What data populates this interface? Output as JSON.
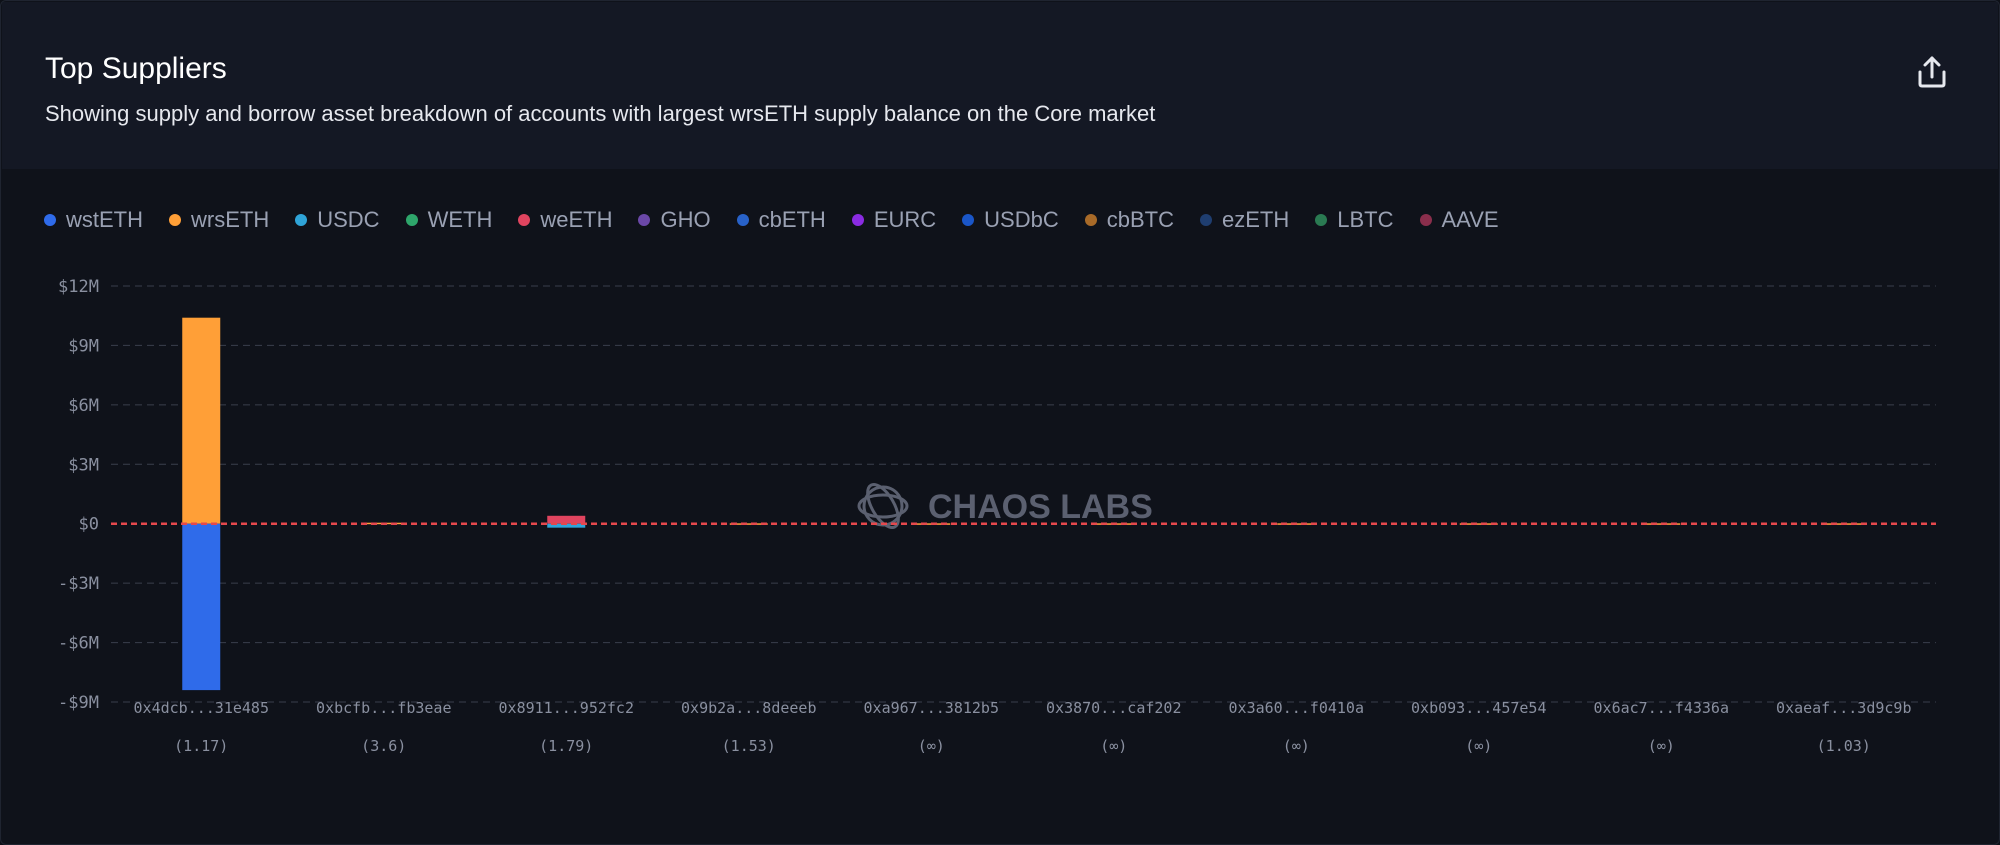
{
  "header": {
    "title": "Top Suppliers",
    "subtitle": "Showing supply and borrow asset breakdown of accounts with largest wrsETH supply balance on the Core market"
  },
  "watermark": "CHAOS LABS",
  "icons": {
    "export": "share-upload-icon",
    "watermark_logo": "chaos-labs-logo-icon"
  },
  "legend": [
    {
      "name": "wstETH",
      "color": "#2f6bea"
    },
    {
      "name": "wrsETH",
      "color": "#ff9f37"
    },
    {
      "name": "USDC",
      "color": "#2fa4d8"
    },
    {
      "name": "WETH",
      "color": "#2ea66b"
    },
    {
      "name": "weETH",
      "color": "#e0445f"
    },
    {
      "name": "GHO",
      "color": "#6b48a8"
    },
    {
      "name": "cbETH",
      "color": "#2862c9"
    },
    {
      "name": "EURC",
      "color": "#8a2be2"
    },
    {
      "name": "USDbC",
      "color": "#1a56c8"
    },
    {
      "name": "cbBTC",
      "color": "#a86a28"
    },
    {
      "name": "ezETH",
      "color": "#1f3e70"
    },
    {
      "name": "LBTC",
      "color": "#2a7a52"
    },
    {
      "name": "AAVE",
      "color": "#8a2e4c"
    }
  ],
  "chart_data": {
    "type": "bar",
    "stacked": true,
    "ylim": [
      -9000000,
      12000000
    ],
    "y_ticks": [
      {
        "value": 12000000,
        "label": "$12M"
      },
      {
        "value": 9000000,
        "label": "$9M"
      },
      {
        "value": 6000000,
        "label": "$6M"
      },
      {
        "value": 3000000,
        "label": "$3M"
      },
      {
        "value": 0,
        "label": "$0"
      },
      {
        "value": -3000000,
        "label": "-$3M"
      },
      {
        "value": -6000000,
        "label": "-$6M"
      },
      {
        "value": -9000000,
        "label": "-$9M"
      }
    ],
    "grid": true,
    "legend_position": "top-left",
    "categories": [
      {
        "label": "0x4dcb...31e485",
        "sublabel": "(1.17)"
      },
      {
        "label": "0xbcfb...fb3eae",
        "sublabel": "(3.6)"
      },
      {
        "label": "0x8911...952fc2",
        "sublabel": "(1.79)"
      },
      {
        "label": "0x9b2a...8deeeb",
        "sublabel": "(1.53)"
      },
      {
        "label": "0xa967...3812b5",
        "sublabel": "(∞)"
      },
      {
        "label": "0x3870...caf202",
        "sublabel": "(∞)"
      },
      {
        "label": "0x3a60...f0410a",
        "sublabel": "(∞)"
      },
      {
        "label": "0xb093...457e54",
        "sublabel": "(∞)"
      },
      {
        "label": "0x6ac7...f4336a",
        "sublabel": "(∞)"
      },
      {
        "label": "0xaeaf...3d9c9b",
        "sublabel": "(1.03)"
      }
    ],
    "series": [
      {
        "name": "wrsETH",
        "color": "#ff9f37",
        "values": [
          10400000,
          50000,
          0,
          20000,
          20000,
          20000,
          20000,
          20000,
          20000,
          20000
        ]
      },
      {
        "name": "wstETH",
        "color": "#2f6bea",
        "values": [
          -8400000,
          0,
          0,
          0,
          0,
          0,
          0,
          0,
          0,
          0
        ]
      },
      {
        "name": "weETH",
        "color": "#e0445f",
        "values": [
          0,
          0,
          400000,
          0,
          0,
          0,
          0,
          0,
          0,
          0
        ]
      },
      {
        "name": "USDC",
        "color": "#2fa4d8",
        "values": [
          0,
          0,
          -200000,
          0,
          0,
          0,
          0,
          0,
          0,
          0
        ]
      }
    ],
    "reference_line": {
      "value": 0,
      "color": "#e5484d"
    }
  }
}
